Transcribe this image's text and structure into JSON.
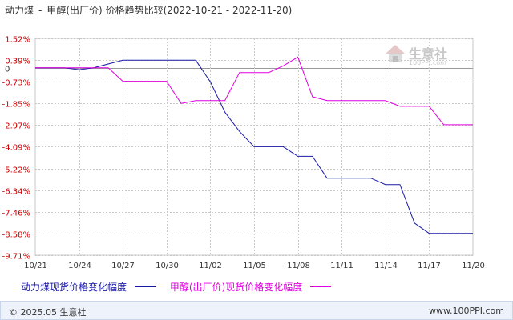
{
  "title": {
    "left": "动力煤",
    "separator": "-",
    "right": "甲醇(出厂价)",
    "suffix": "价格趋势比较(2022-10-21  -  2022-11-20)"
  },
  "footer": {
    "copyright": "© 2025.05 生意社",
    "url": "www.100PPI.com"
  },
  "watermark": {
    "name": "生意社",
    "url": "100PPI.com"
  },
  "colors": {
    "series_1": "#1a1aa8",
    "series_2": "#e000e0",
    "grid": "#c8c8c8",
    "axis": "#333333",
    "label_red": "#cc0000",
    "zero_line": "#999999"
  },
  "chart_data": {
    "type": "line",
    "title": "动力煤 - 甲醇(出厂价) 价格趋势比较(2022-10-21 - 2022-11-20)",
    "xlabel": "",
    "ylabel": "",
    "x_ticks": [
      "10/21",
      "10/24",
      "10/27",
      "10/30",
      "11/02",
      "11/05",
      "11/08",
      "11/11",
      "11/14",
      "11/17",
      "11/20"
    ],
    "y_ticks": [
      "1.52%",
      "0.39%",
      "0",
      "-0.73%",
      "-1.85%",
      "-2.97%",
      "-4.09%",
      "-5.22%",
      "-6.34%",
      "-7.46%",
      "-8.58%",
      "-9.71%"
    ],
    "y_tick_values": [
      1.52,
      0.39,
      0,
      -0.73,
      -1.85,
      -2.97,
      -4.09,
      -5.22,
      -6.34,
      -7.46,
      -8.58,
      -9.71
    ],
    "ylim": [
      -9.71,
      1.52
    ],
    "xlim": [
      0,
      30
    ],
    "grid": true,
    "legend_position": "bottom-left",
    "series": [
      {
        "name": "动力煤现货价格变化幅度",
        "x": [
          0,
          2,
          3,
          4,
          6,
          7,
          8,
          9,
          10,
          11,
          12,
          13,
          14,
          15,
          16,
          17,
          18,
          19,
          20,
          21,
          22,
          23,
          24,
          25,
          26,
          27,
          28,
          29,
          30
        ],
        "y": [
          0,
          0,
          -0.1,
          0,
          0.39,
          0.39,
          0.39,
          0.39,
          0.39,
          0.39,
          -0.73,
          -2.3,
          -3.3,
          -4.09,
          -4.09,
          -4.09,
          -4.59,
          -4.59,
          -5.72,
          -5.72,
          -5.72,
          -5.72,
          -6.05,
          -6.05,
          -8.05,
          -8.58,
          -8.58,
          -8.58,
          -8.58
        ]
      },
      {
        "name": "甲醇(出厂价)现货价格变化幅度",
        "x": [
          0,
          1,
          2,
          3,
          4,
          5,
          6,
          7,
          8,
          9,
          10,
          11,
          12,
          13,
          14,
          15,
          16,
          17,
          18,
          19,
          20,
          21,
          22,
          23,
          24,
          25,
          26,
          27,
          28,
          29,
          30
        ],
        "y": [
          0,
          0,
          0,
          0,
          0,
          0,
          -0.7,
          -0.7,
          -0.7,
          -0.7,
          -1.85,
          -1.7,
          -1.7,
          -1.7,
          -0.25,
          -0.25,
          -0.25,
          0.1,
          0.55,
          -1.5,
          -1.7,
          -1.7,
          -1.7,
          -1.7,
          -1.7,
          -2,
          -2,
          -2,
          -2.95,
          -2.95,
          -2.95
        ]
      }
    ]
  }
}
